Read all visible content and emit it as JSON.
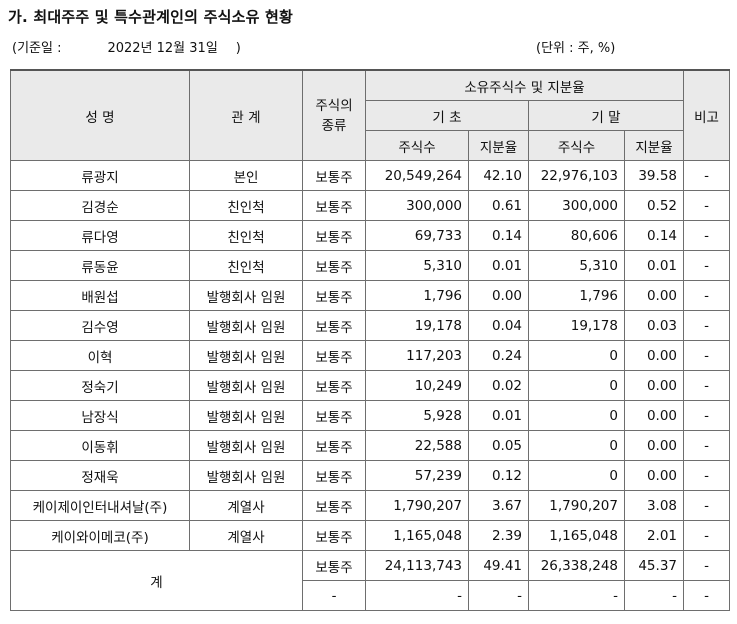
{
  "title": "가. 최대주주 및 특수관계인의 주식소유 현황",
  "meta": {
    "base_label": "(기준일 :",
    "base_date": "2022년 12월 31일",
    "base_close": ")",
    "unit": "(단위 : 주, %)"
  },
  "header": {
    "name": "성 명",
    "relation": "관 계",
    "stock_type": "주식의 종류",
    "holdings": "소유주식수 및 지분율",
    "begin": "기 초",
    "end": "기 말",
    "shares": "주식수",
    "ratio": "지분율",
    "note": "비고"
  },
  "rows": [
    {
      "name": "류광지",
      "relation": "본인",
      "type": "보통주",
      "begin_shares": "20,549,264",
      "begin_ratio": "42.10",
      "end_shares": "22,976,103",
      "end_ratio": "39.58",
      "note": "-"
    },
    {
      "name": "김경순",
      "relation": "친인척",
      "type": "보통주",
      "begin_shares": "300,000",
      "begin_ratio": "0.61",
      "end_shares": "300,000",
      "end_ratio": "0.52",
      "note": "-"
    },
    {
      "name": "류다영",
      "relation": "친인척",
      "type": "보통주",
      "begin_shares": "69,733",
      "begin_ratio": "0.14",
      "end_shares": "80,606",
      "end_ratio": "0.14",
      "note": "-"
    },
    {
      "name": "류동윤",
      "relation": "친인척",
      "type": "보통주",
      "begin_shares": "5,310",
      "begin_ratio": "0.01",
      "end_shares": "5,310",
      "end_ratio": "0.01",
      "note": "-"
    },
    {
      "name": "배원섭",
      "relation": "발행회사 임원",
      "type": "보통주",
      "begin_shares": "1,796",
      "begin_ratio": "0.00",
      "end_shares": "1,796",
      "end_ratio": "0.00",
      "note": "-"
    },
    {
      "name": "김수영",
      "relation": "발행회사 임원",
      "type": "보통주",
      "begin_shares": "19,178",
      "begin_ratio": "0.04",
      "end_shares": "19,178",
      "end_ratio": "0.03",
      "note": "-"
    },
    {
      "name": "이혁",
      "relation": "발행회사 임원",
      "type": "보통주",
      "begin_shares": "117,203",
      "begin_ratio": "0.24",
      "end_shares": "0",
      "end_ratio": "0.00",
      "note": "-"
    },
    {
      "name": "정숙기",
      "relation": "발행회사 임원",
      "type": "보통주",
      "begin_shares": "10,249",
      "begin_ratio": "0.02",
      "end_shares": "0",
      "end_ratio": "0.00",
      "note": "-"
    },
    {
      "name": "남장식",
      "relation": "발행회사 임원",
      "type": "보통주",
      "begin_shares": "5,928",
      "begin_ratio": "0.01",
      "end_shares": "0",
      "end_ratio": "0.00",
      "note": "-"
    },
    {
      "name": "이동휘",
      "relation": "발행회사 임원",
      "type": "보통주",
      "begin_shares": "22,588",
      "begin_ratio": "0.05",
      "end_shares": "0",
      "end_ratio": "0.00",
      "note": "-"
    },
    {
      "name": "정재욱",
      "relation": "발행회사 임원",
      "type": "보통주",
      "begin_shares": "57,239",
      "begin_ratio": "0.12",
      "end_shares": "0",
      "end_ratio": "0.00",
      "note": "-"
    },
    {
      "name": "케이제이인터내셔날(주)",
      "relation": "계열사",
      "type": "보통주",
      "begin_shares": "1,790,207",
      "begin_ratio": "3.67",
      "end_shares": "1,790,207",
      "end_ratio": "3.08",
      "note": "-"
    },
    {
      "name": "케이와이메코(주)",
      "relation": "계열사",
      "type": "보통주",
      "begin_shares": "1,165,048",
      "begin_ratio": "2.39",
      "end_shares": "1,165,048",
      "end_ratio": "2.01",
      "note": "-"
    }
  ],
  "total": {
    "label": "계",
    "rows": [
      {
        "type": "보통주",
        "begin_shares": "24,113,743",
        "begin_ratio": "49.41",
        "end_shares": "26,338,248",
        "end_ratio": "45.37",
        "note": "-"
      },
      {
        "type": "-",
        "begin_shares": "-",
        "begin_ratio": "-",
        "end_shares": "-",
        "end_ratio": "-",
        "note": "-"
      }
    ]
  }
}
